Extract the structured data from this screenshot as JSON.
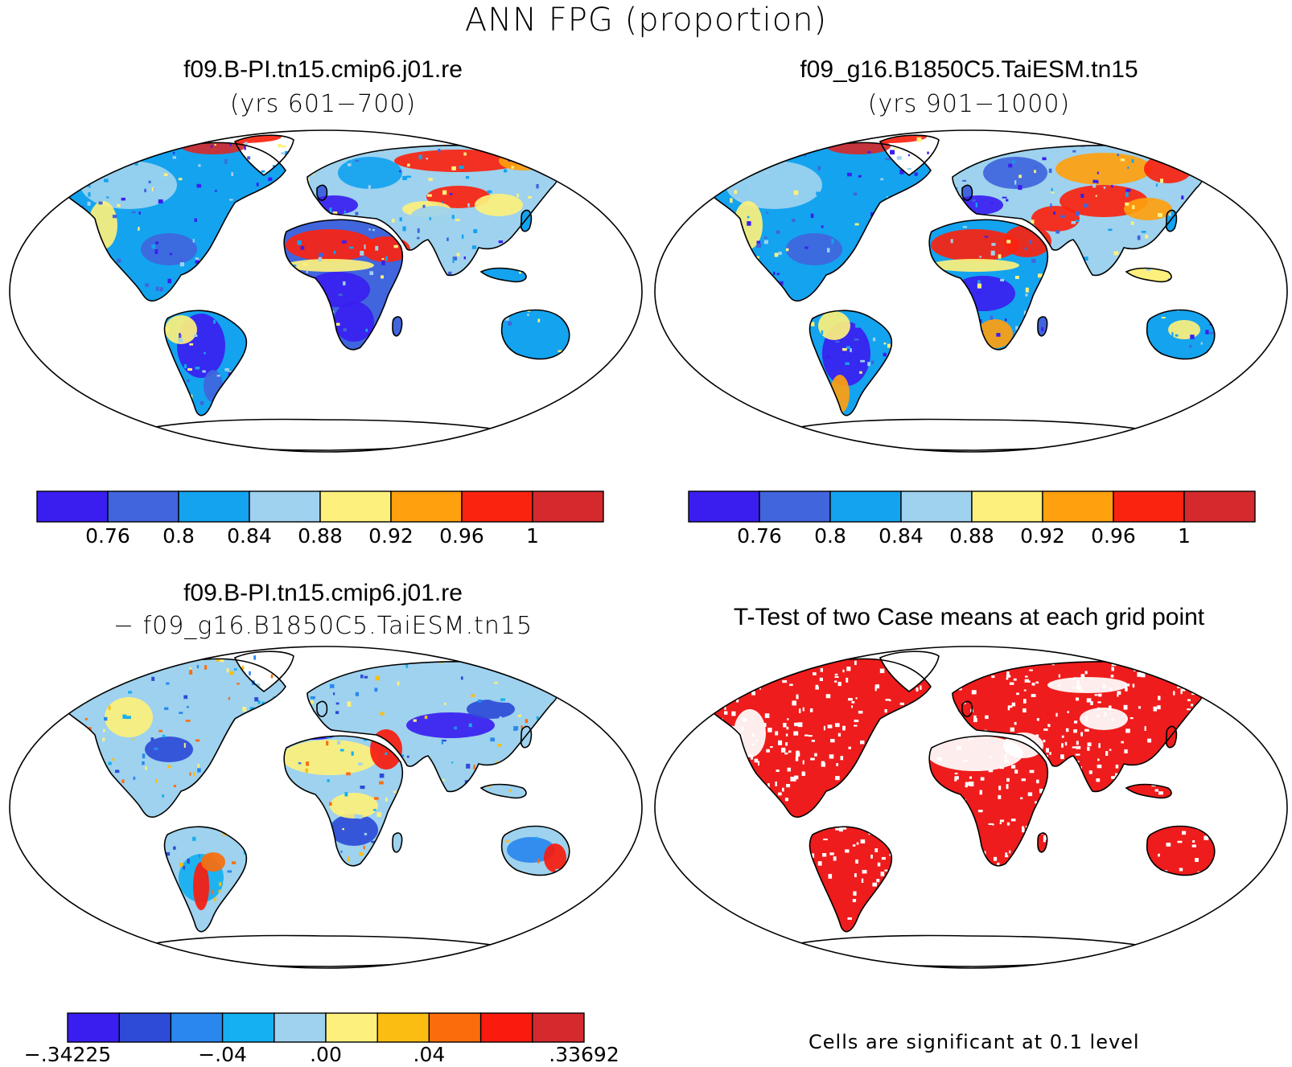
{
  "title": "ANN FPG (proportion)",
  "panels": {
    "top_left": {
      "title": "f09.B-PI.tn15.cmip6.j01.re",
      "subtitle": "(yrs 601−700)"
    },
    "top_right": {
      "title": "f09_g16.B1850C5.TaiESM.tn15",
      "subtitle": "(yrs 901−1000)"
    },
    "bottom_left": {
      "title": "f09.B-PI.tn15.cmip6.j01.re",
      "subtitle": "− f09_g16.B1850C5.TaiESM.tn15"
    },
    "bottom_right": {
      "title": "T-Test of two Case means at each grid point",
      "note": "Cells are significant at 0.1 level"
    }
  },
  "colorbars": {
    "absolute": {
      "colors": [
        "#3a1ef0",
        "#4065dd",
        "#14a3ef",
        "#9ed2ee",
        "#fdf07c",
        "#ffa00f",
        "#fa2310",
        "#d42a2d"
      ],
      "labels": [
        "0.76",
        "0.8",
        "0.84",
        "0.88",
        "0.92",
        "0.96",
        "1"
      ]
    },
    "difference": {
      "colors": [
        "#3a1ef0",
        "#2e4bd8",
        "#2a87ee",
        "#14b0f0",
        "#9ed2ee",
        "#fdf07c",
        "#fbbd12",
        "#fb6d0c",
        "#f81b0e",
        "#d42a2d"
      ],
      "labels": [
        ".34225",
        "−.04",
        ".00",
        ".04",
        ".33692"
      ],
      "first_label": "−.34225"
    }
  },
  "map_colors": {
    "ocean": "#ffffff",
    "coast": "#000000",
    "significant": "#ee1c1c"
  }
}
